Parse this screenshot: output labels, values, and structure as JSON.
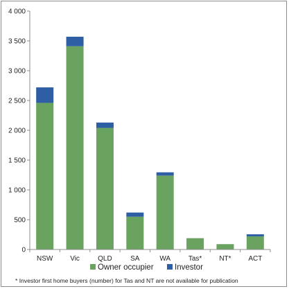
{
  "chart_data": {
    "type": "bar",
    "stacked": true,
    "categories": [
      "NSW",
      "Vic",
      "QLD",
      "SA",
      "WA",
      "Tas*",
      "NT*",
      "ACT"
    ],
    "series": [
      {
        "name": "Owner occupier",
        "color": "#6aa35f",
        "values": [
          2460,
          3410,
          2040,
          550,
          1240,
          190,
          90,
          220
        ]
      },
      {
        "name": "Investor",
        "color": "#2e5ea3",
        "values": [
          260,
          160,
          90,
          70,
          55,
          null,
          null,
          35
        ]
      }
    ],
    "ylim": [
      0,
      4000
    ],
    "yticks": [
      0,
      500,
      1000,
      1500,
      2000,
      2500,
      3000,
      3500,
      4000
    ],
    "ytick_labels": [
      "0",
      "500",
      "1 000",
      "1 500",
      "2 000",
      "2 500",
      "3 000",
      "3 500",
      "4 000"
    ],
    "grid": false,
    "legend_position": "bottom",
    "footnote": "* Investor first home buyers (number) for Tas and NT are not available for publication",
    "title": "",
    "xlabel": "",
    "ylabel": ""
  }
}
